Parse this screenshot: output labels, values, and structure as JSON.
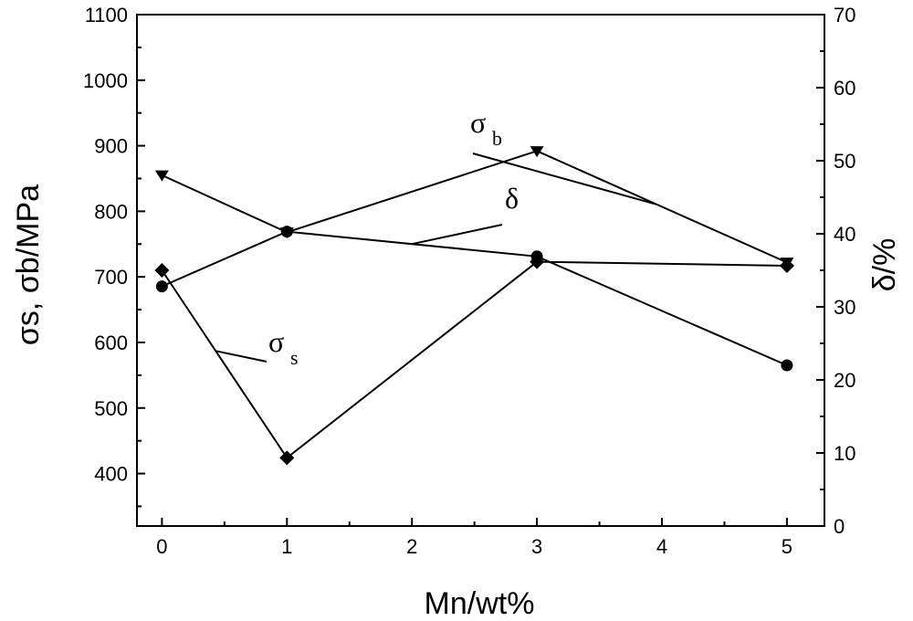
{
  "chart_data": {
    "type": "line",
    "xlabel": "Mn/wt%",
    "ylabel": "σs, σb/MPa",
    "y2label": "δ/%",
    "xlim": [
      -0.2,
      5.3
    ],
    "ylim": [
      320,
      1100
    ],
    "y2lim": [
      0,
      70
    ],
    "xticks": [
      0,
      1,
      2,
      3,
      4,
      5
    ],
    "yticks": [
      400,
      500,
      600,
      700,
      800,
      900,
      1000,
      1100
    ],
    "y2ticks": [
      0,
      10,
      20,
      30,
      40,
      50,
      60,
      70
    ],
    "grid": false,
    "legend": "none",
    "series": [
      {
        "id": "sigma_b",
        "axis": "left",
        "marker": "triangle-down",
        "x": [
          0,
          1,
          3,
          5
        ],
        "y": [
          855,
          768,
          892,
          722
        ]
      },
      {
        "id": "sigma_s",
        "axis": "left",
        "marker": "diamond",
        "x": [
          0,
          1,
          3,
          5
        ],
        "y": [
          710,
          424,
          723,
          717
        ]
      },
      {
        "id": "delta",
        "axis": "right",
        "marker": "circle",
        "x": [
          0,
          1,
          3,
          5
        ],
        "y": [
          32.8,
          40.3,
          36.9,
          22.0
        ]
      }
    ],
    "annotations": [
      {
        "id": "sigma_b",
        "symbol": "σ",
        "subscript": "b"
      },
      {
        "id": "delta",
        "symbol": "δ",
        "subscript": ""
      },
      {
        "id": "sigma_s",
        "symbol": "σ",
        "subscript": "s"
      }
    ]
  }
}
